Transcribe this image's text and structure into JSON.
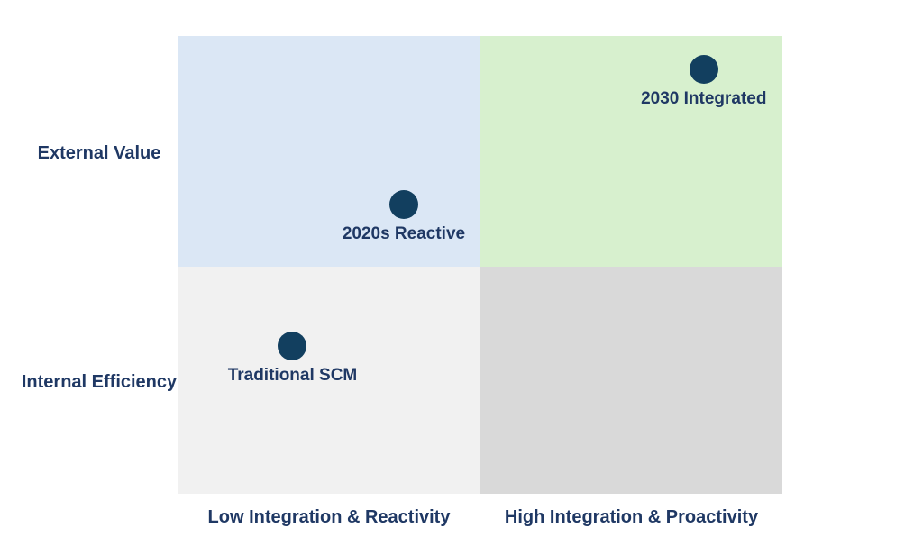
{
  "chart_data": {
    "type": "scatter",
    "subtype": "2x2-quadrant-matrix",
    "title": "",
    "x_axis": {
      "label_left": "Low Integration & Reactivity",
      "label_right": "High Integration & Proactivity"
    },
    "y_axis": {
      "label_top": "External Value",
      "label_bottom": "Internal Efficiency"
    },
    "xlim": [
      0,
      1
    ],
    "ylim": [
      0,
      1
    ],
    "grid": false,
    "legend": false,
    "quadrants": [
      {
        "position": "top-left",
        "color": "#DBE7F5"
      },
      {
        "position": "top-right",
        "color": "#D7F0CE"
      },
      {
        "position": "bottom-left",
        "color": "#F1F1F1"
      },
      {
        "position": "bottom-right",
        "color": "#D9D9D9"
      }
    ],
    "points": [
      {
        "label": "Traditional SCM",
        "x": 0.19,
        "y": 0.323,
        "quadrant": "bottom-left"
      },
      {
        "label": "2020s Reactive",
        "x": 0.374,
        "y": 0.632,
        "quadrant": "top-left"
      },
      {
        "label": "2030 Integrated",
        "x": 0.87,
        "y": 0.927,
        "quadrant": "top-right"
      }
    ],
    "point_color": "#123F5F",
    "label_color": "#1F3864",
    "background_color": "#FFFFFF"
  }
}
